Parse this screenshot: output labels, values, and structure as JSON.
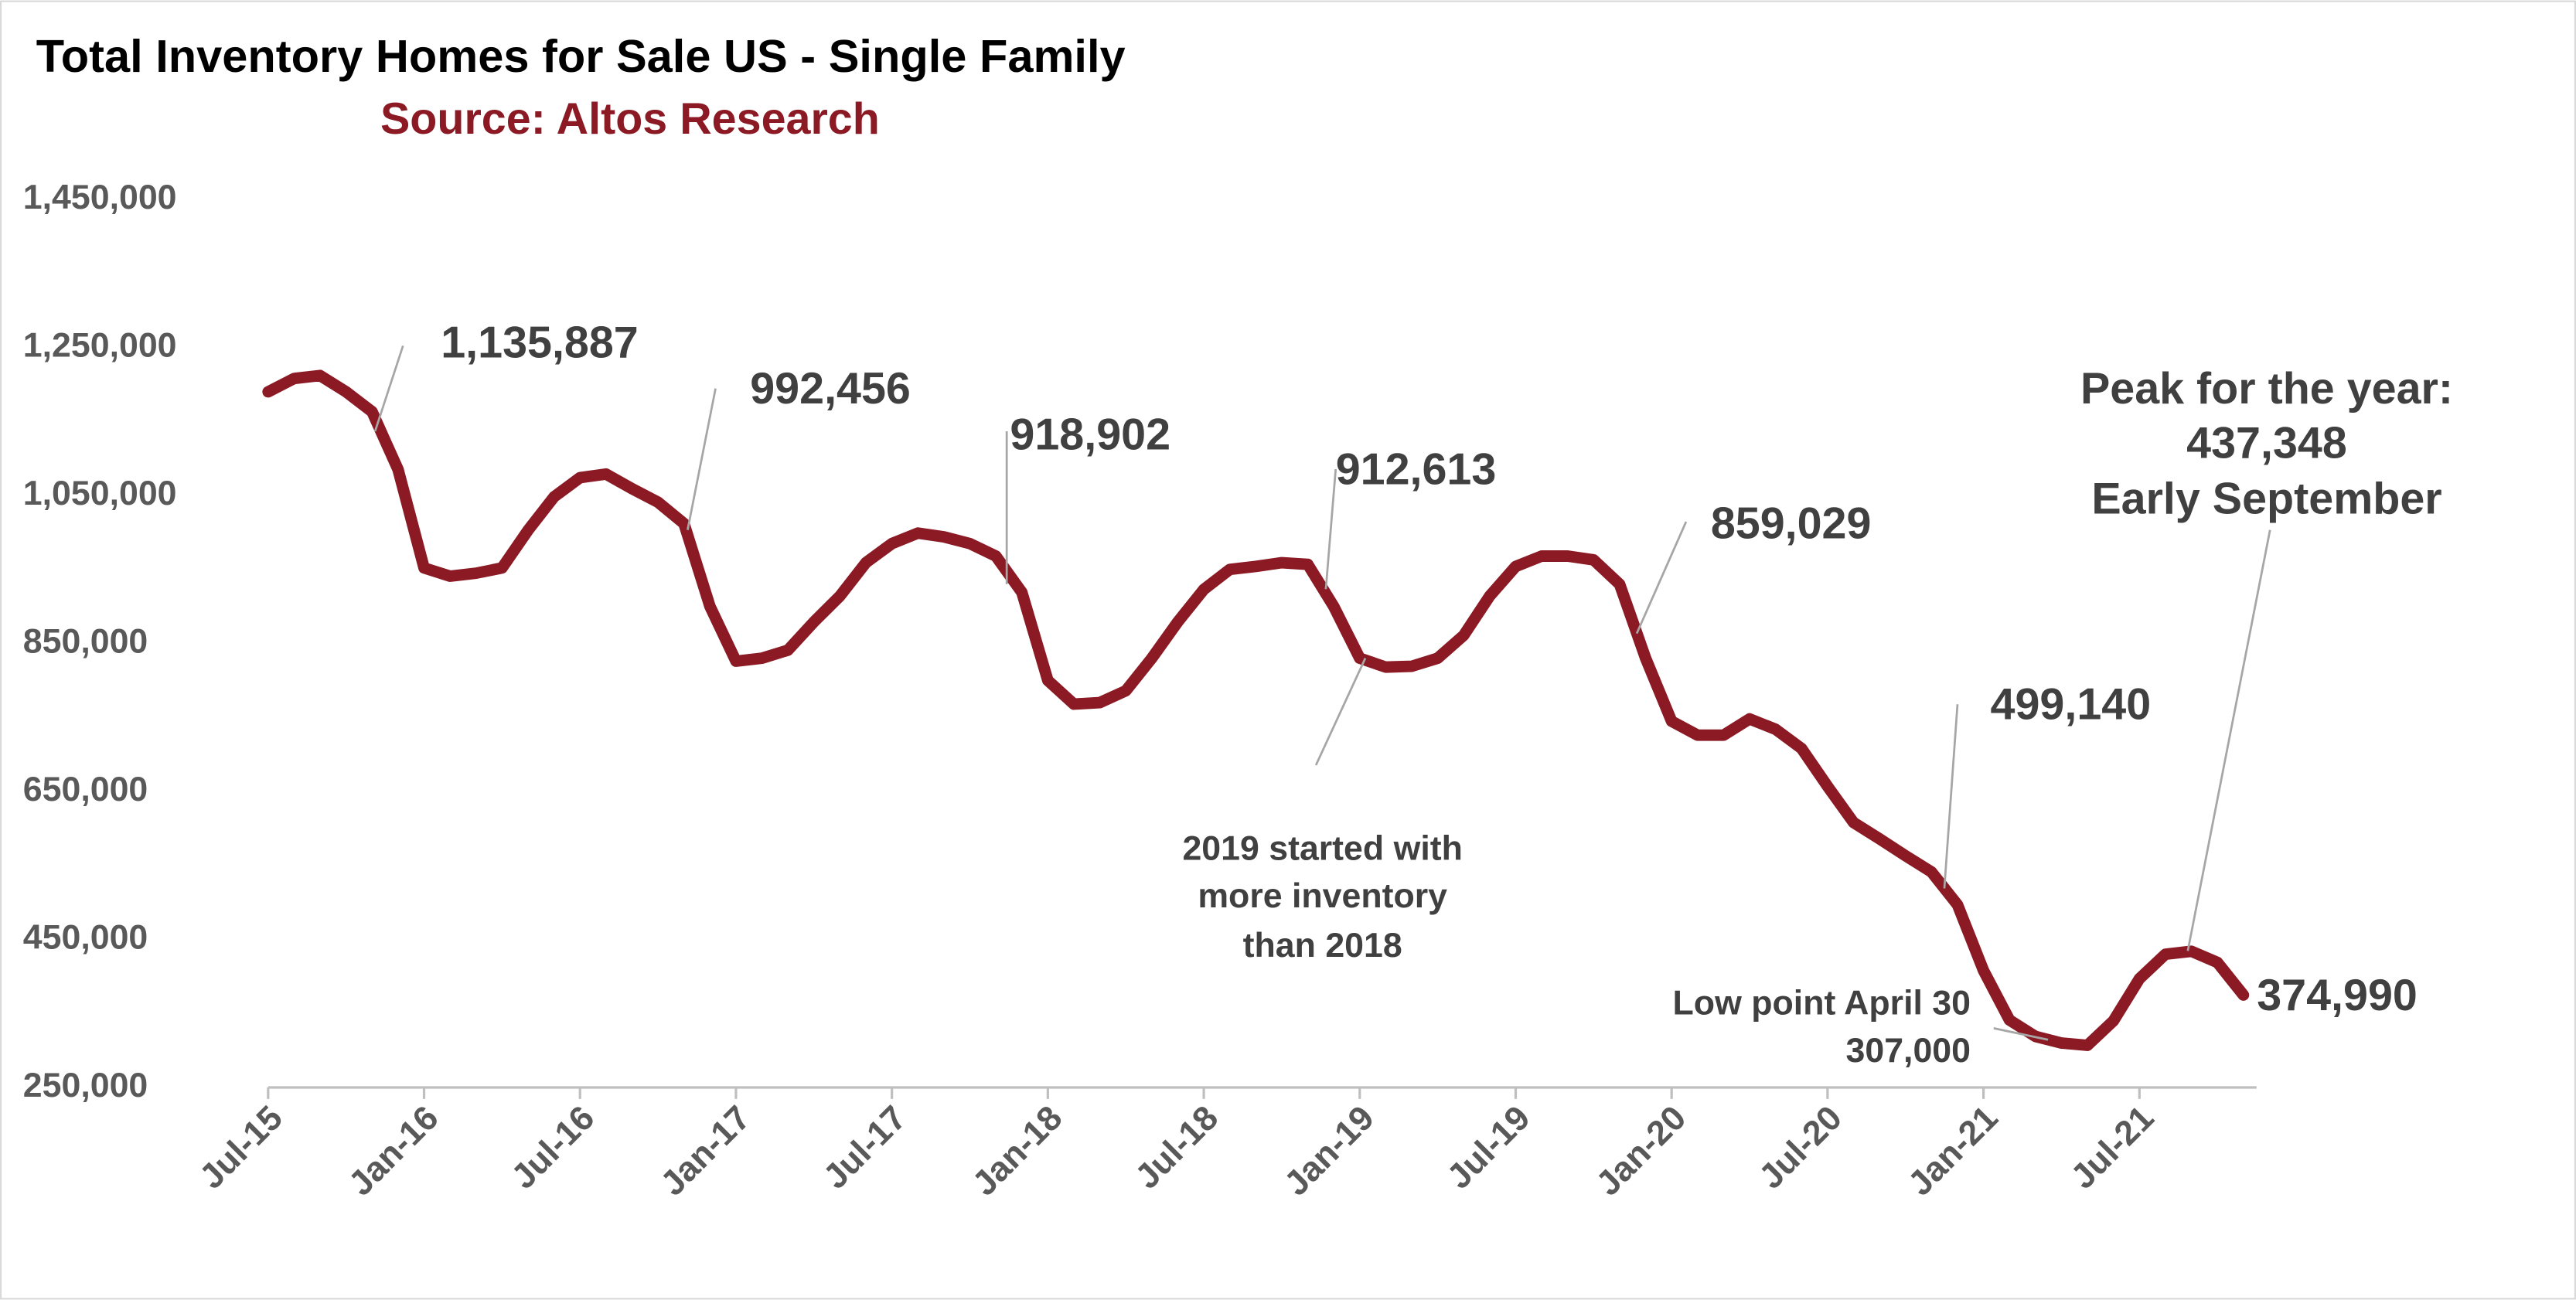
{
  "chart_data": {
    "type": "line",
    "title": "Total Inventory Homes for Sale US - Single Family",
    "subtitle": "Source: Altos Research",
    "categories": [
      "Jul-15",
      null,
      null,
      null,
      null,
      null,
      "Jan-16",
      null,
      null,
      null,
      null,
      null,
      "Jul-16",
      null,
      null,
      null,
      null,
      null,
      "Jan-17",
      null,
      null,
      null,
      null,
      null,
      "Jul-17",
      null,
      null,
      null,
      null,
      null,
      "Jan-18",
      null,
      null,
      null,
      null,
      null,
      "Jul-18",
      null,
      null,
      null,
      null,
      null,
      "Jan-19",
      null,
      null,
      null,
      null,
      null,
      "Jul-19",
      null,
      null,
      null,
      null,
      null,
      "Jan-20",
      null,
      null,
      null,
      null,
      null,
      "Jul-20",
      null,
      null,
      null,
      null,
      null,
      "Jan-21",
      null,
      null,
      null,
      null,
      null,
      "Jul-21",
      null,
      null,
      null,
      null
    ],
    "series": [
      {
        "name": "Total Inventory",
        "color": "#8b1a24",
        "values": [
          1190000,
          1208000,
          1212000,
          1190000,
          1163000,
          1085000,
          952000,
          941000,
          945000,
          952000,
          1003000,
          1048000,
          1074000,
          1079000,
          1059000,
          1041000,
          1012000,
          900000,
          826000,
          830000,
          841000,
          879000,
          914000,
          959000,
          985000,
          999000,
          994000,
          985000,
          968000,
          919000,
          800000,
          768000,
          770000,
          786000,
          830000,
          879000,
          923000,
          950000,
          954000,
          959000,
          957000,
          900000,
          830000,
          818000,
          819000,
          830000,
          861000,
          914000,
          954000,
          968000,
          968000,
          963000,
          930000,
          830000,
          745000,
          726000,
          726000,
          748000,
          734000,
          708000,
          657000,
          608000,
          586000,
          563000,
          541000,
          497000,
          408000,
          341000,
          319000,
          310000,
          307000,
          340000,
          397000,
          430000,
          434000,
          419000,
          375000
        ]
      }
    ],
    "ylim": [
      250000,
      1450000
    ],
    "yticks": [
      {
        "value": 250000,
        "label": "250,000"
      },
      {
        "value": 450000,
        "label": "450,000"
      },
      {
        "value": 650000,
        "label": "650,000"
      },
      {
        "value": 850000,
        "label": "850,000"
      },
      {
        "value": 1050000,
        "label": "1,050,000"
      },
      {
        "value": 1250000,
        "label": "1,250,000"
      },
      {
        "value": 1450000,
        "label": "1,450,000"
      }
    ],
    "grid": false,
    "annotations": [
      {
        "lines": [
          "1,135,887"
        ]
      },
      {
        "lines": [
          "992,456"
        ]
      },
      {
        "lines": [
          "918,902"
        ]
      },
      {
        "lines": [
          "912,613"
        ]
      },
      {
        "lines": [
          "859,029"
        ]
      },
      {
        "lines": [
          "499,140"
        ]
      },
      {
        "lines": [
          "Peak for the year:",
          "437,348",
          "Early September"
        ]
      },
      {
        "lines": [
          "Low point April 30",
          "307,000"
        ]
      },
      {
        "lines": [
          "2019 started with",
          "more inventory",
          "than 2018"
        ]
      },
      {
        "lines": [
          "374,990"
        ]
      }
    ]
  }
}
